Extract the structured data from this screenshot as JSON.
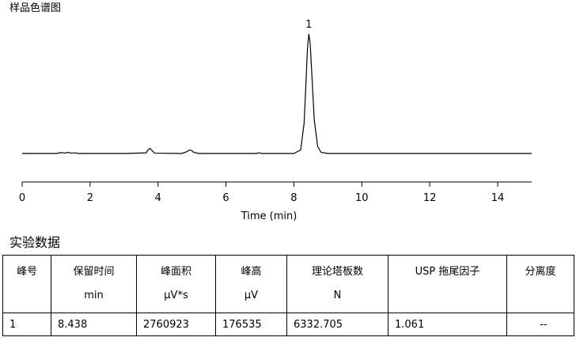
{
  "chart_data": {
    "type": "line",
    "title": "样品色谱图",
    "x_label": "Time (min)",
    "x": [
      0,
      1.0,
      1.15,
      1.25,
      1.35,
      1.45,
      1.55,
      1.65,
      2.0,
      3.0,
      3.65,
      3.72,
      3.77,
      3.82,
      3.9,
      4.7,
      4.85,
      4.93,
      4.98,
      5.05,
      5.2,
      6.9,
      6.97,
      7.05,
      8.0,
      8.2,
      8.3,
      8.35,
      8.4,
      8.44,
      8.48,
      8.55,
      8.6,
      8.7,
      8.8,
      9.0,
      10.0,
      15.0
    ],
    "values": [
      0,
      0,
      0.8,
      0.3,
      1.0,
      0.2,
      0.6,
      0,
      0,
      0,
      0.5,
      3.5,
      4.2,
      2.5,
      0.3,
      0,
      1.5,
      3.0,
      2.6,
      1.0,
      0,
      0,
      0.6,
      0,
      0,
      3,
      25,
      55,
      88,
      100,
      92,
      55,
      28,
      6,
      1,
      0,
      0,
      0
    ],
    "color": "#000000",
    "xlim": [
      0,
      15
    ],
    "xticks": [
      0,
      2,
      4,
      6,
      8,
      10,
      12,
      14
    ],
    "ylim": [
      0,
      100
    ],
    "annotations": [
      {
        "text": "1",
        "x": 8.44,
        "y": 100
      }
    ]
  },
  "section_title": "实验数据",
  "table": {
    "header": [
      [
        "峰号"
      ],
      [
        "保留时间",
        "min"
      ],
      [
        "峰面积",
        "μV*s"
      ],
      [
        "峰高",
        "μV"
      ],
      [
        "理论塔板数",
        "N"
      ],
      [
        "USP 拖尾因子"
      ],
      [
        "分离度"
      ]
    ],
    "rows": [
      [
        1,
        8.438,
        2760923,
        176535,
        6332.705,
        1.061,
        "--"
      ]
    ]
  }
}
